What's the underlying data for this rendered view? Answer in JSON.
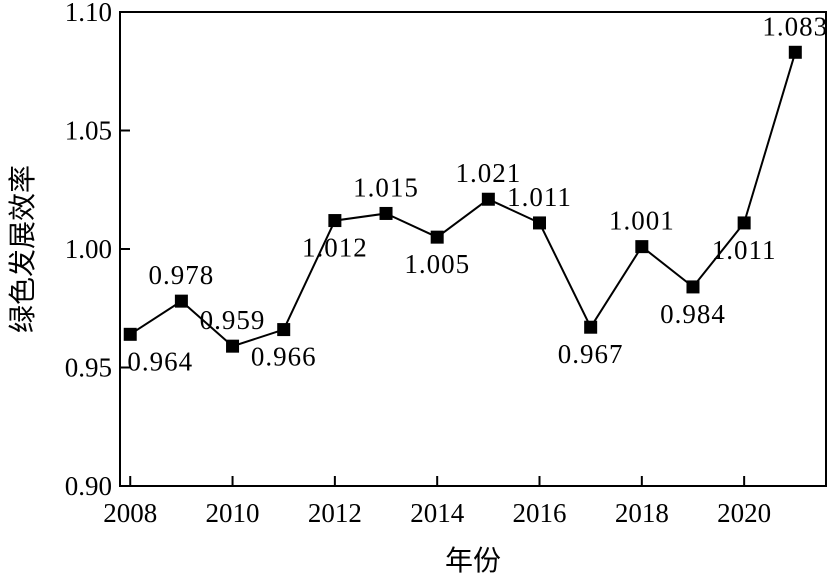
{
  "chart_data": {
    "type": "line",
    "xlabel": "年份",
    "ylabel": "绿色发展效率",
    "x": [
      2008,
      2009,
      2010,
      2011,
      2012,
      2013,
      2014,
      2015,
      2016,
      2017,
      2018,
      2019,
      2020,
      2021
    ],
    "series": [
      {
        "values": [
          0.964,
          0.978,
          0.959,
          0.966,
          1.012,
          1.015,
          1.005,
          1.021,
          1.011,
          0.967,
          1.001,
          0.984,
          1.011,
          1.083
        ],
        "labels": [
          "0.964",
          "0.978",
          "0.959",
          "0.966",
          "1.012",
          "1.015",
          "1.005",
          "1.021",
          "1.011",
          "0.967",
          "1.001",
          "0.984",
          "1.011",
          "1.083"
        ]
      }
    ],
    "xlim": [
      2007.8,
      2021.6
    ],
    "ylim": [
      0.9,
      1.1
    ],
    "xticks": [
      2008,
      2010,
      2012,
      2014,
      2016,
      2018,
      2020
    ],
    "xtick_labels": [
      "2008",
      "2010",
      "2012",
      "2014",
      "2016",
      "2018",
      "2020"
    ],
    "yticks": [
      0.9,
      0.95,
      1.0,
      1.05,
      1.1
    ],
    "ytick_labels": [
      "0.90",
      "0.95",
      "1.00",
      "1.05",
      "1.10"
    ],
    "marker": "square",
    "line_color": "#000000",
    "grid": false,
    "legend": false
  }
}
